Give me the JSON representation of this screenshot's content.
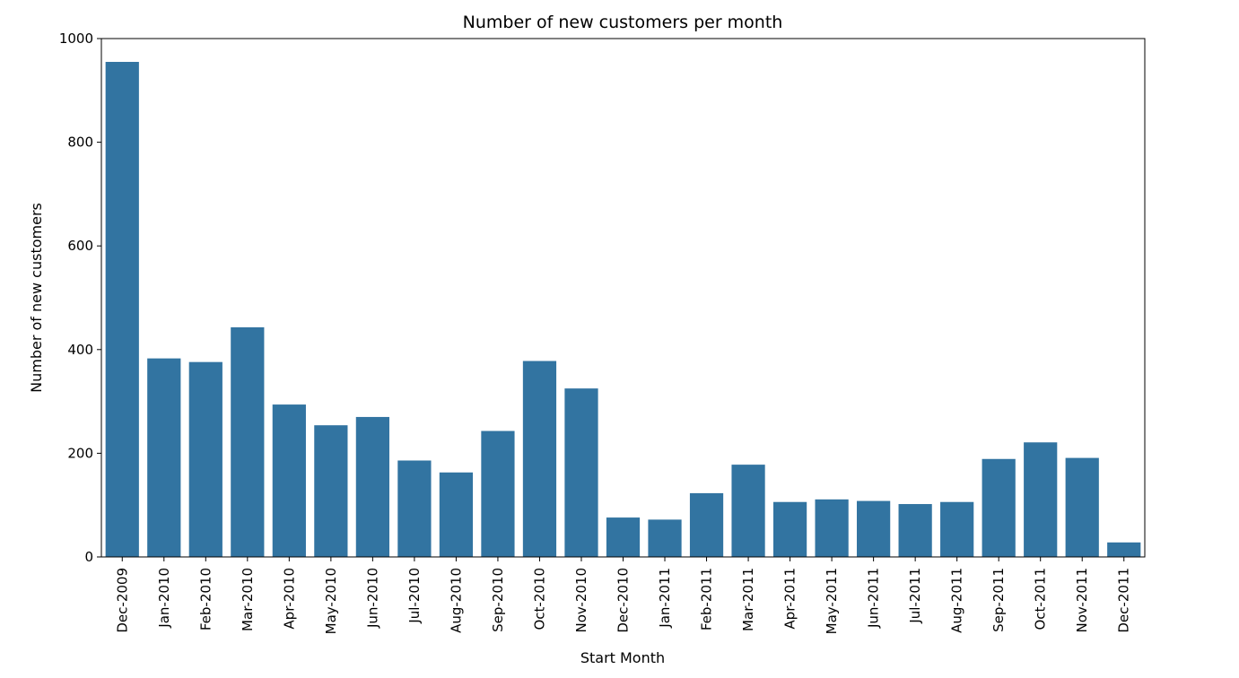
{
  "chart_data": {
    "type": "bar",
    "title": "Number of new customers per month",
    "xlabel": "Start Month",
    "ylabel": "Number of new customers",
    "ylim": [
      0,
      1000
    ],
    "yticks": [
      "0",
      "200",
      "400",
      "600",
      "800",
      "1000"
    ],
    "ytick_values": [
      0,
      200,
      400,
      600,
      800,
      1000
    ],
    "grid": false,
    "bar_color": "#3274a1",
    "categories": [
      "Dec-2009",
      "Jan-2010",
      "Feb-2010",
      "Mar-2010",
      "Apr-2010",
      "May-2010",
      "Jun-2010",
      "Jul-2010",
      "Aug-2010",
      "Sep-2010",
      "Oct-2010",
      "Nov-2010",
      "Dec-2010",
      "Jan-2011",
      "Feb-2011",
      "Mar-2011",
      "Apr-2011",
      "May-2011",
      "Jun-2011",
      "Jul-2011",
      "Aug-2011",
      "Sep-2011",
      "Oct-2011",
      "Nov-2011",
      "Dec-2011"
    ],
    "values": [
      955,
      383,
      376,
      443,
      294,
      254,
      270,
      186,
      163,
      243,
      378,
      325,
      76,
      72,
      123,
      178,
      106,
      111,
      108,
      102,
      106,
      189,
      221,
      191,
      28
    ]
  }
}
